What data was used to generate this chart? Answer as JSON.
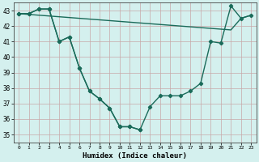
{
  "title": "",
  "xlabel": "Humidex (Indice chaleur)",
  "ylabel": "",
  "background_color": "#d4f0ee",
  "plot_bg_color": "#d4f0ee",
  "grid_color_h": "#c8b8b8",
  "grid_color_v": "#c8b8b8",
  "line_color": "#1a6b5a",
  "marker": "D",
  "markersize": 2.2,
  "linewidth": 1.0,
  "xlim": [
    -0.5,
    23.5
  ],
  "ylim": [
    34.5,
    43.5
  ],
  "yticks": [
    35,
    36,
    37,
    38,
    39,
    40,
    41,
    42,
    43
  ],
  "xticks": [
    0,
    1,
    2,
    3,
    4,
    5,
    6,
    7,
    8,
    9,
    10,
    11,
    12,
    13,
    14,
    15,
    16,
    17,
    18,
    19,
    20,
    21,
    22,
    23
  ],
  "series": [
    {
      "x": [
        0,
        1,
        2,
        3,
        4,
        5,
        6,
        7,
        8,
        9,
        10,
        11,
        12
      ],
      "y": [
        42.8,
        42.8,
        43.1,
        43.1,
        41.0,
        41.3,
        39.3,
        37.8,
        37.3,
        36.7,
        35.5,
        35.5,
        35.3
      ]
    },
    {
      "x": [
        0,
        1,
        2,
        3,
        4,
        5,
        6,
        7,
        8,
        9,
        10,
        11,
        12,
        13,
        14,
        15,
        16,
        17,
        18,
        19,
        20,
        21,
        22,
        23
      ],
      "y": [
        42.8,
        42.8,
        43.1,
        43.1,
        41.0,
        41.3,
        39.3,
        37.8,
        37.3,
        36.7,
        35.5,
        35.5,
        35.3,
        36.8,
        37.5,
        37.5,
        37.5,
        37.8,
        38.3,
        41.0,
        40.9,
        43.3,
        42.5,
        42.7
      ]
    },
    {
      "x": [
        0,
        1,
        2,
        3,
        4,
        5,
        6,
        7,
        8,
        9,
        10,
        11,
        12,
        13,
        14,
        15,
        16,
        17,
        18,
        19,
        20,
        21,
        22,
        23
      ],
      "y": [
        42.8,
        42.75,
        42.7,
        42.65,
        42.6,
        42.55,
        42.5,
        42.45,
        42.4,
        42.35,
        42.3,
        42.25,
        42.2,
        42.15,
        42.1,
        42.05,
        42.0,
        41.95,
        41.9,
        41.85,
        41.8,
        41.75,
        42.5,
        42.7
      ]
    }
  ]
}
